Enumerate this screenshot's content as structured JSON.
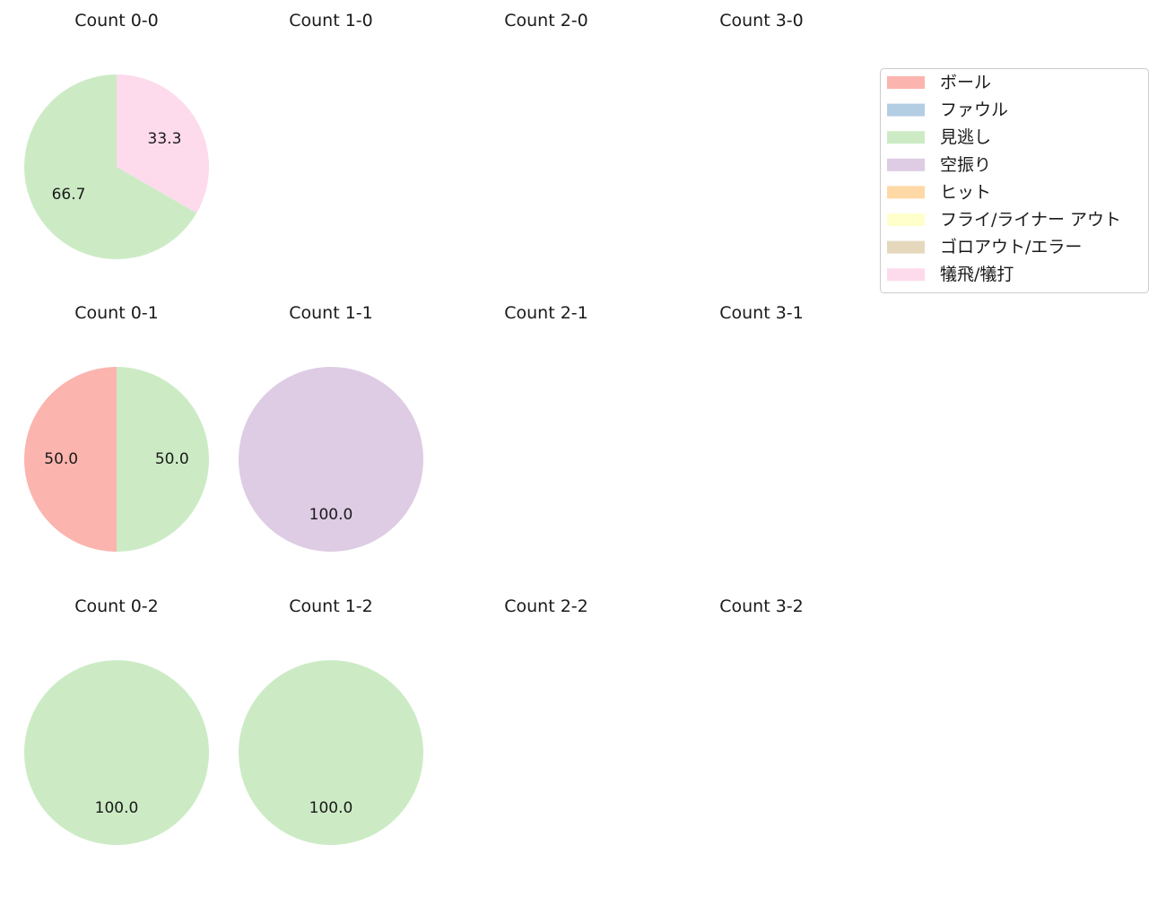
{
  "chart_data": {
    "type": "pie",
    "label_format": "%.1f",
    "legend": {
      "placement": "top-right",
      "entries": [
        {
          "name": "ボール",
          "color": "#fbb4ae"
        },
        {
          "name": "ファウル",
          "color": "#b3cde3"
        },
        {
          "name": "見逃し",
          "color": "#ccebc5"
        },
        {
          "name": "空振り",
          "color": "#decbe4"
        },
        {
          "name": "ヒット",
          "color": "#fed9a6"
        },
        {
          "name": "フライ/ライナー アウト",
          "color": "#ffffcc"
        },
        {
          "name": "ゴロアウト/エラー",
          "color": "#e5d8bd"
        },
        {
          "name": "犠飛/犠打",
          "color": "#fddaec"
        }
      ]
    },
    "subplots": [
      {
        "title": "Count 0-0",
        "balls": 0,
        "strikes": 0,
        "slices": [
          {
            "category": "見逃し",
            "value": 66.7
          },
          {
            "category": "犠飛/犠打",
            "value": 33.3
          }
        ]
      },
      {
        "title": "Count 1-0",
        "balls": 1,
        "strikes": 0,
        "slices": []
      },
      {
        "title": "Count 2-0",
        "balls": 2,
        "strikes": 0,
        "slices": []
      },
      {
        "title": "Count 3-0",
        "balls": 3,
        "strikes": 0,
        "slices": []
      },
      {
        "title": "Count 0-1",
        "balls": 0,
        "strikes": 1,
        "slices": [
          {
            "category": "ボール",
            "value": 50.0
          },
          {
            "category": "見逃し",
            "value": 50.0
          }
        ]
      },
      {
        "title": "Count 1-1",
        "balls": 1,
        "strikes": 1,
        "slices": [
          {
            "category": "空振り",
            "value": 100.0
          }
        ]
      },
      {
        "title": "Count 2-1",
        "balls": 2,
        "strikes": 1,
        "slices": []
      },
      {
        "title": "Count 3-1",
        "balls": 3,
        "strikes": 1,
        "slices": []
      },
      {
        "title": "Count 0-2",
        "balls": 0,
        "strikes": 2,
        "slices": [
          {
            "category": "見逃し",
            "value": 100.0
          }
        ]
      },
      {
        "title": "Count 1-2",
        "balls": 1,
        "strikes": 2,
        "slices": [
          {
            "category": "見逃し",
            "value": 100.0
          }
        ]
      },
      {
        "title": "Count 2-2",
        "balls": 2,
        "strikes": 2,
        "slices": []
      },
      {
        "title": "Count 3-2",
        "balls": 3,
        "strikes": 2,
        "slices": []
      }
    ]
  }
}
